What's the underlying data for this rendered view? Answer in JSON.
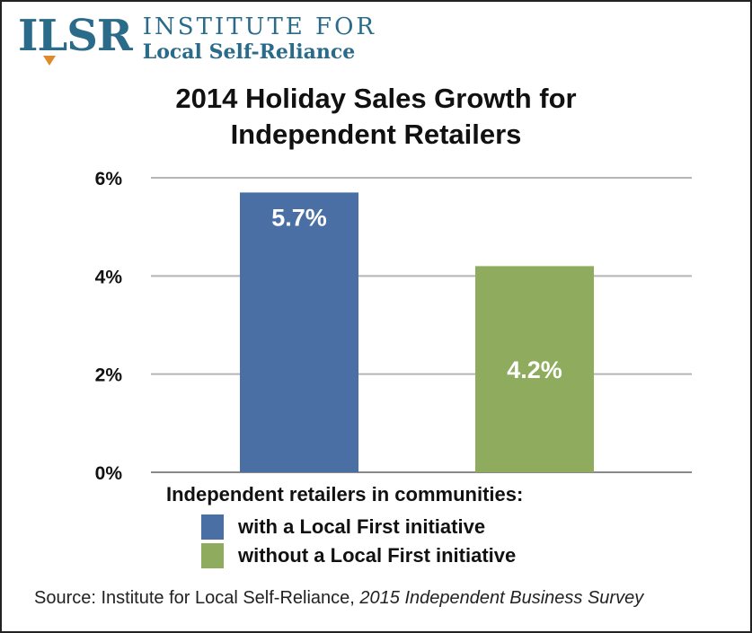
{
  "logo": {
    "mark": "ILSR",
    "line1": "INSTITUTE FOR",
    "line2": "Local Self-Reliance"
  },
  "colors": {
    "brand": "#2a6b8a",
    "brand_accent": "#e08a2e",
    "series_with": "#4a6fa5",
    "series_without": "#8fab5e",
    "gridline": "#b5b5b5"
  },
  "chart_data": {
    "type": "bar",
    "title_line1": "2014 Holiday Sales Growth for",
    "title_line2": "Independent Retailers",
    "categories": [
      "with a Local First initiative",
      "without a Local First initiative"
    ],
    "values": [
      5.7,
      4.2
    ],
    "data_labels": [
      "5.7%",
      "4.2%"
    ],
    "ylim": [
      0,
      6
    ],
    "yticks": [
      {
        "value": 0,
        "label": "0%"
      },
      {
        "value": 2,
        "label": "2%"
      },
      {
        "value": 4,
        "label": "4%"
      },
      {
        "value": 6,
        "label": "6%"
      }
    ],
    "grid": true,
    "legend_title": "Independent retailers in communities:",
    "legend": [
      {
        "label": "with a Local First initiative",
        "color": "#4a6fa5"
      },
      {
        "label": "without a Local First initiative",
        "color": "#8fab5e"
      }
    ]
  },
  "source": {
    "prefix": "Source: Institute for Local Self-Reliance, ",
    "title": "2015 Independent Business Survey"
  }
}
